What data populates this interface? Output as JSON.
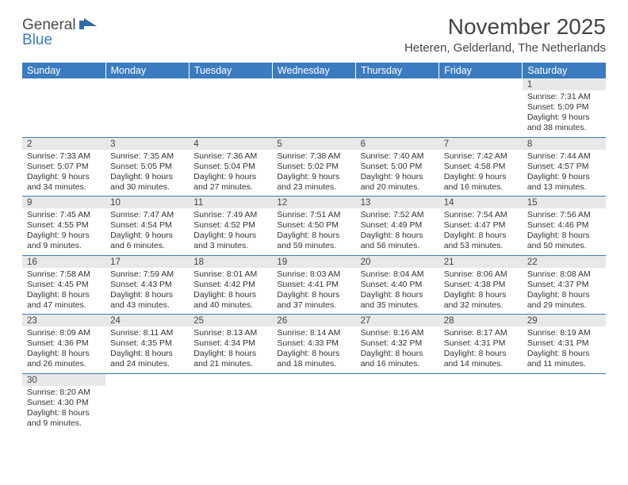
{
  "logo": {
    "text1": "General",
    "text2": "Blue"
  },
  "title": "November 2025",
  "location": "Heteren, Gelderland, The Netherlands",
  "colors": {
    "header_bg": "#3b7bbf",
    "header_text": "#ffffff",
    "daynum_bg": "#e8e8e8",
    "cell_border": "#3b7bbf",
    "text": "#333333"
  },
  "fonts": {
    "title_size_pt": 21,
    "location_size_pt": 11,
    "header_size_pt": 9.5,
    "cell_size_pt": 8
  },
  "day_headers": [
    "Sunday",
    "Monday",
    "Tuesday",
    "Wednesday",
    "Thursday",
    "Friday",
    "Saturday"
  ],
  "weeks": [
    [
      null,
      null,
      null,
      null,
      null,
      null,
      {
        "n": "1",
        "sunrise": "Sunrise: 7:31 AM",
        "sunset": "Sunset: 5:09 PM",
        "daylight": "Daylight: 9 hours and 38 minutes."
      }
    ],
    [
      {
        "n": "2",
        "sunrise": "Sunrise: 7:33 AM",
        "sunset": "Sunset: 5:07 PM",
        "daylight": "Daylight: 9 hours and 34 minutes."
      },
      {
        "n": "3",
        "sunrise": "Sunrise: 7:35 AM",
        "sunset": "Sunset: 5:05 PM",
        "daylight": "Daylight: 9 hours and 30 minutes."
      },
      {
        "n": "4",
        "sunrise": "Sunrise: 7:36 AM",
        "sunset": "Sunset: 5:04 PM",
        "daylight": "Daylight: 9 hours and 27 minutes."
      },
      {
        "n": "5",
        "sunrise": "Sunrise: 7:38 AM",
        "sunset": "Sunset: 5:02 PM",
        "daylight": "Daylight: 9 hours and 23 minutes."
      },
      {
        "n": "6",
        "sunrise": "Sunrise: 7:40 AM",
        "sunset": "Sunset: 5:00 PM",
        "daylight": "Daylight: 9 hours and 20 minutes."
      },
      {
        "n": "7",
        "sunrise": "Sunrise: 7:42 AM",
        "sunset": "Sunset: 4:58 PM",
        "daylight": "Daylight: 9 hours and 16 minutes."
      },
      {
        "n": "8",
        "sunrise": "Sunrise: 7:44 AM",
        "sunset": "Sunset: 4:57 PM",
        "daylight": "Daylight: 9 hours and 13 minutes."
      }
    ],
    [
      {
        "n": "9",
        "sunrise": "Sunrise: 7:45 AM",
        "sunset": "Sunset: 4:55 PM",
        "daylight": "Daylight: 9 hours and 9 minutes."
      },
      {
        "n": "10",
        "sunrise": "Sunrise: 7:47 AM",
        "sunset": "Sunset: 4:54 PM",
        "daylight": "Daylight: 9 hours and 6 minutes."
      },
      {
        "n": "11",
        "sunrise": "Sunrise: 7:49 AM",
        "sunset": "Sunset: 4:52 PM",
        "daylight": "Daylight: 9 hours and 3 minutes."
      },
      {
        "n": "12",
        "sunrise": "Sunrise: 7:51 AM",
        "sunset": "Sunset: 4:50 PM",
        "daylight": "Daylight: 8 hours and 59 minutes."
      },
      {
        "n": "13",
        "sunrise": "Sunrise: 7:52 AM",
        "sunset": "Sunset: 4:49 PM",
        "daylight": "Daylight: 8 hours and 56 minutes."
      },
      {
        "n": "14",
        "sunrise": "Sunrise: 7:54 AM",
        "sunset": "Sunset: 4:47 PM",
        "daylight": "Daylight: 8 hours and 53 minutes."
      },
      {
        "n": "15",
        "sunrise": "Sunrise: 7:56 AM",
        "sunset": "Sunset: 4:46 PM",
        "daylight": "Daylight: 8 hours and 50 minutes."
      }
    ],
    [
      {
        "n": "16",
        "sunrise": "Sunrise: 7:58 AM",
        "sunset": "Sunset: 4:45 PM",
        "daylight": "Daylight: 8 hours and 47 minutes."
      },
      {
        "n": "17",
        "sunrise": "Sunrise: 7:59 AM",
        "sunset": "Sunset: 4:43 PM",
        "daylight": "Daylight: 8 hours and 43 minutes."
      },
      {
        "n": "18",
        "sunrise": "Sunrise: 8:01 AM",
        "sunset": "Sunset: 4:42 PM",
        "daylight": "Daylight: 8 hours and 40 minutes."
      },
      {
        "n": "19",
        "sunrise": "Sunrise: 8:03 AM",
        "sunset": "Sunset: 4:41 PM",
        "daylight": "Daylight: 8 hours and 37 minutes."
      },
      {
        "n": "20",
        "sunrise": "Sunrise: 8:04 AM",
        "sunset": "Sunset: 4:40 PM",
        "daylight": "Daylight: 8 hours and 35 minutes."
      },
      {
        "n": "21",
        "sunrise": "Sunrise: 8:06 AM",
        "sunset": "Sunset: 4:38 PM",
        "daylight": "Daylight: 8 hours and 32 minutes."
      },
      {
        "n": "22",
        "sunrise": "Sunrise: 8:08 AM",
        "sunset": "Sunset: 4:37 PM",
        "daylight": "Daylight: 8 hours and 29 minutes."
      }
    ],
    [
      {
        "n": "23",
        "sunrise": "Sunrise: 8:09 AM",
        "sunset": "Sunset: 4:36 PM",
        "daylight": "Daylight: 8 hours and 26 minutes."
      },
      {
        "n": "24",
        "sunrise": "Sunrise: 8:11 AM",
        "sunset": "Sunset: 4:35 PM",
        "daylight": "Daylight: 8 hours and 24 minutes."
      },
      {
        "n": "25",
        "sunrise": "Sunrise: 8:13 AM",
        "sunset": "Sunset: 4:34 PM",
        "daylight": "Daylight: 8 hours and 21 minutes."
      },
      {
        "n": "26",
        "sunrise": "Sunrise: 8:14 AM",
        "sunset": "Sunset: 4:33 PM",
        "daylight": "Daylight: 8 hours and 18 minutes."
      },
      {
        "n": "27",
        "sunrise": "Sunrise: 8:16 AM",
        "sunset": "Sunset: 4:32 PM",
        "daylight": "Daylight: 8 hours and 16 minutes."
      },
      {
        "n": "28",
        "sunrise": "Sunrise: 8:17 AM",
        "sunset": "Sunset: 4:31 PM",
        "daylight": "Daylight: 8 hours and 14 minutes."
      },
      {
        "n": "29",
        "sunrise": "Sunrise: 8:19 AM",
        "sunset": "Sunset: 4:31 PM",
        "daylight": "Daylight: 8 hours and 11 minutes."
      }
    ],
    [
      {
        "n": "30",
        "sunrise": "Sunrise: 8:20 AM",
        "sunset": "Sunset: 4:30 PM",
        "daylight": "Daylight: 8 hours and 9 minutes."
      },
      null,
      null,
      null,
      null,
      null,
      null
    ]
  ]
}
